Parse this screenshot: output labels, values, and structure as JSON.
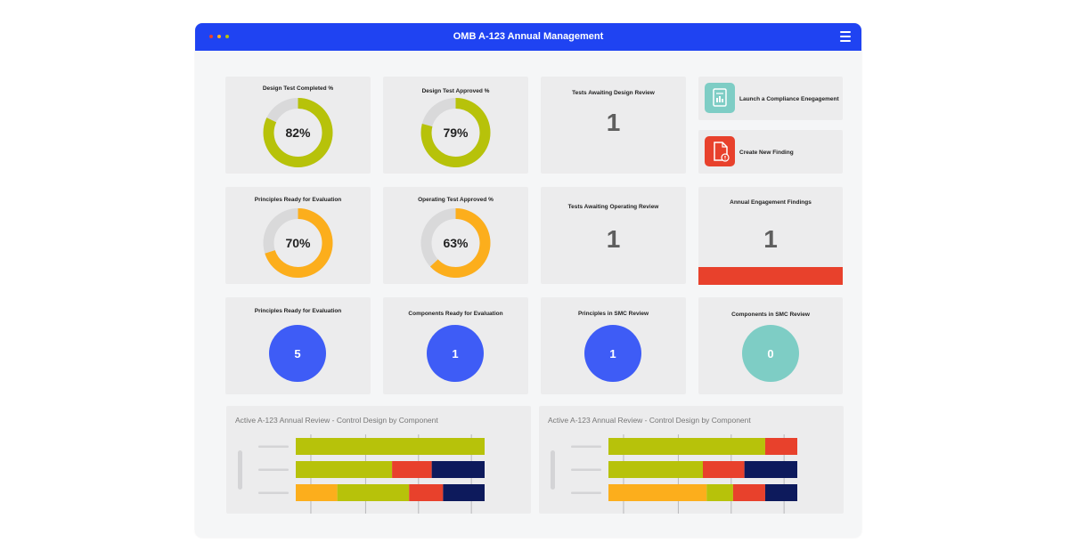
{
  "window": {
    "title": "OMB A-123 Annual Management"
  },
  "colors": {
    "header": "#1f43f2",
    "green": "#b7c20a",
    "orange": "#fcae1c",
    "red": "#e8412c",
    "navy": "#0d1a5c",
    "gray": "#d9d9da",
    "blue": "#3e5cf6",
    "teal": "#7ecdc5",
    "dot1": "#e8412c",
    "dot2": "#fcae1c",
    "dot3": "#b7c20a"
  },
  "donuts": [
    {
      "title": "Design Test Completed %",
      "value": 82,
      "label": "82%",
      "color": "#b7c20a"
    },
    {
      "title": "Design Test Approved %",
      "value": 79,
      "label": "79%",
      "color": "#b7c20a"
    },
    {
      "title": "Principles Ready for Evaluation",
      "value": 70,
      "label": "70%",
      "color": "#fcae1c"
    },
    {
      "title": "Operating Test Approved %",
      "value": 63,
      "label": "63%",
      "color": "#fcae1c"
    }
  ],
  "counts": [
    {
      "title": "Tests Awaiting Design Review",
      "value": "1"
    },
    {
      "title": "Tests Awaiting Operating Review",
      "value": "1"
    },
    {
      "title": "Annual Engagement Findings",
      "value": "1"
    }
  ],
  "actions": [
    {
      "label": "Launch a Compliance Enegagement",
      "icon": "chart-document-icon",
      "color": "#7ecdc5"
    },
    {
      "label": "Create New Finding",
      "icon": "document-alert-icon",
      "color": "#e8412c"
    }
  ],
  "circles": [
    {
      "title": "Principles Ready for Evaluation",
      "value": "5",
      "color": "#3e5cf6"
    },
    {
      "title": "Components Ready for Evaluation",
      "value": "1",
      "color": "#3e5cf6"
    },
    {
      "title": "Principles in SMC Review",
      "value": "1",
      "color": "#3e5cf6"
    },
    {
      "title": "Components in SMC Review",
      "value": "0",
      "color": "#7ecdc5"
    }
  ],
  "chart_data": [
    {
      "type": "bar",
      "orientation": "horizontal-stacked",
      "title": "Active A-123 Annual Review - Control Design by Component",
      "grid": true,
      "rows": [
        {
          "segments": [
            {
              "color": "#b7c20a",
              "value": 1.0
            }
          ]
        },
        {
          "segments": [
            {
              "color": "#b7c20a",
              "value": 0.51
            },
            {
              "color": "#e8412c",
              "value": 0.21
            },
            {
              "color": "#0d1a5c",
              "value": 0.28
            }
          ]
        },
        {
          "segments": [
            {
              "color": "#fcae1c",
              "value": 0.22
            },
            {
              "color": "#b7c20a",
              "value": 0.38
            },
            {
              "color": "#e8412c",
              "value": 0.18
            },
            {
              "color": "#0d1a5c",
              "value": 0.22
            }
          ]
        }
      ]
    },
    {
      "type": "bar",
      "orientation": "horizontal-stacked",
      "title": "Active A-123 Annual Review - Control Design by Component",
      "grid": true,
      "rows": [
        {
          "segments": [
            {
              "color": "#b7c20a",
              "value": 0.83
            },
            {
              "color": "#e8412c",
              "value": 0.17
            }
          ]
        },
        {
          "segments": [
            {
              "color": "#b7c20a",
              "value": 0.5
            },
            {
              "color": "#e8412c",
              "value": 0.22
            },
            {
              "color": "#0d1a5c",
              "value": 0.28
            }
          ]
        },
        {
          "segments": [
            {
              "color": "#fcae1c",
              "value": 0.52
            },
            {
              "color": "#b7c20a",
              "value": 0.14
            },
            {
              "color": "#e8412c",
              "value": 0.17
            },
            {
              "color": "#0d1a5c",
              "value": 0.17
            }
          ]
        }
      ]
    }
  ]
}
